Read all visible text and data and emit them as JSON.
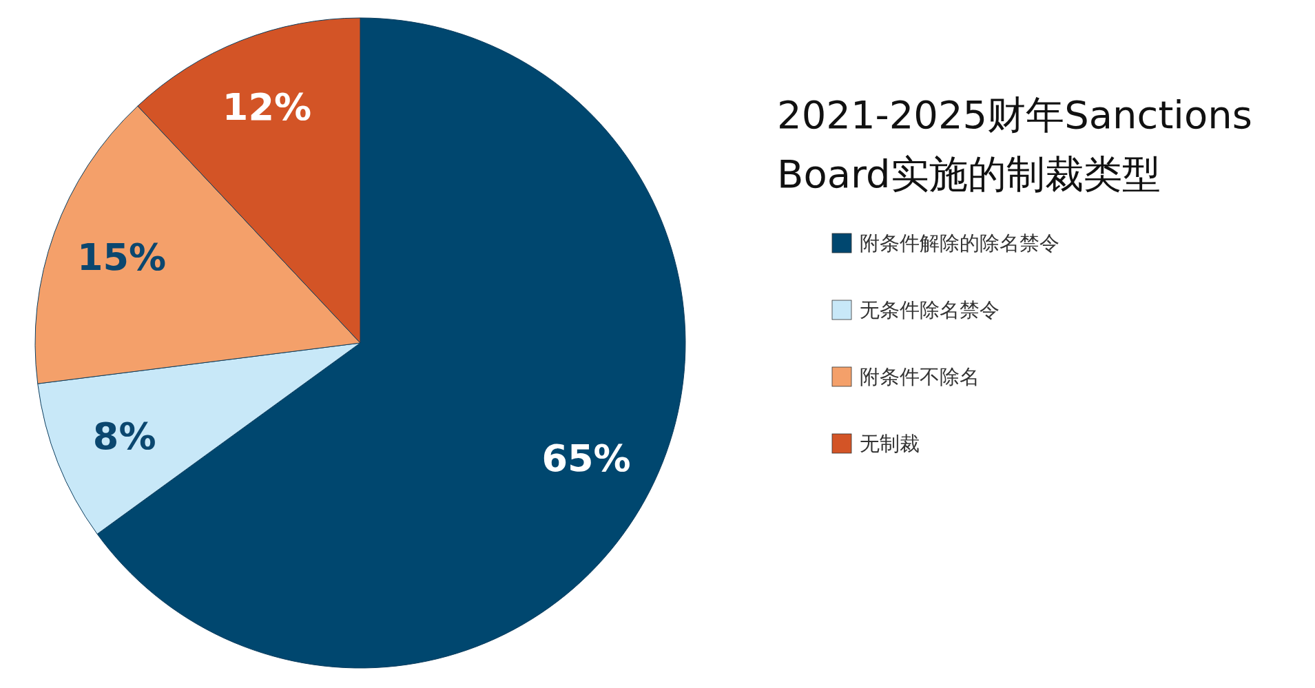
{
  "chart_data": {
    "type": "pie",
    "title": "2021-2025财年Sanctions Board实施的制裁类型",
    "categories": [
      "附条件解除的除名禁令",
      "无条件除名禁令",
      "附条件不除名",
      "无制裁"
    ],
    "values": [
      65,
      8,
      15,
      12
    ],
    "colors": [
      "#00476f",
      "#c8e8f8",
      "#f4a06a",
      "#d35426"
    ],
    "value_labels": [
      "65%",
      "8%",
      "15%",
      "12%"
    ],
    "legend": "right"
  }
}
